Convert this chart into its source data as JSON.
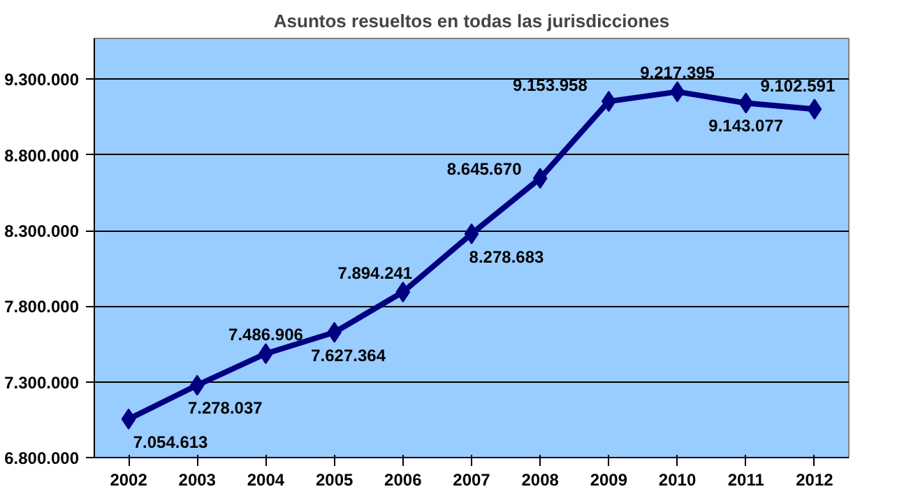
{
  "chart_data": {
    "type": "line",
    "title": "Asuntos resueltos en todas las jurisdicciones",
    "categories": [
      "2002",
      "2003",
      "2004",
      "2005",
      "2006",
      "2007",
      "2008",
      "2009",
      "2010",
      "2011",
      "2012"
    ],
    "series": [
      {
        "color": "#000080",
        "values": [
          7054613,
          7278037,
          7486906,
          7627364,
          7894241,
          8278683,
          8645670,
          9153958,
          9217395,
          9143077,
          9102591
        ],
        "value_labels": [
          "7.054.613",
          "7.278.037",
          "7.486.906",
          "7.627.364",
          "7.894.241",
          "8.278.683",
          "8.645.670",
          "9.153.958",
          "9.217.395",
          "9.143.077",
          "9.102.591"
        ]
      }
    ],
    "ylim": [
      6800000,
      9570000
    ],
    "yticks": [
      {
        "value": 6800000,
        "label": "6.800.000"
      },
      {
        "value": 7300000,
        "label": "7.300.000"
      },
      {
        "value": 7800000,
        "label": "7.800.000"
      },
      {
        "value": 8300000,
        "label": "8.300.000"
      },
      {
        "value": 8800000,
        "label": "8.800.000"
      },
      {
        "value": 9300000,
        "label": "9.300.000"
      }
    ],
    "grid": "y",
    "marker": "diamond",
    "line_style": "solid"
  }
}
